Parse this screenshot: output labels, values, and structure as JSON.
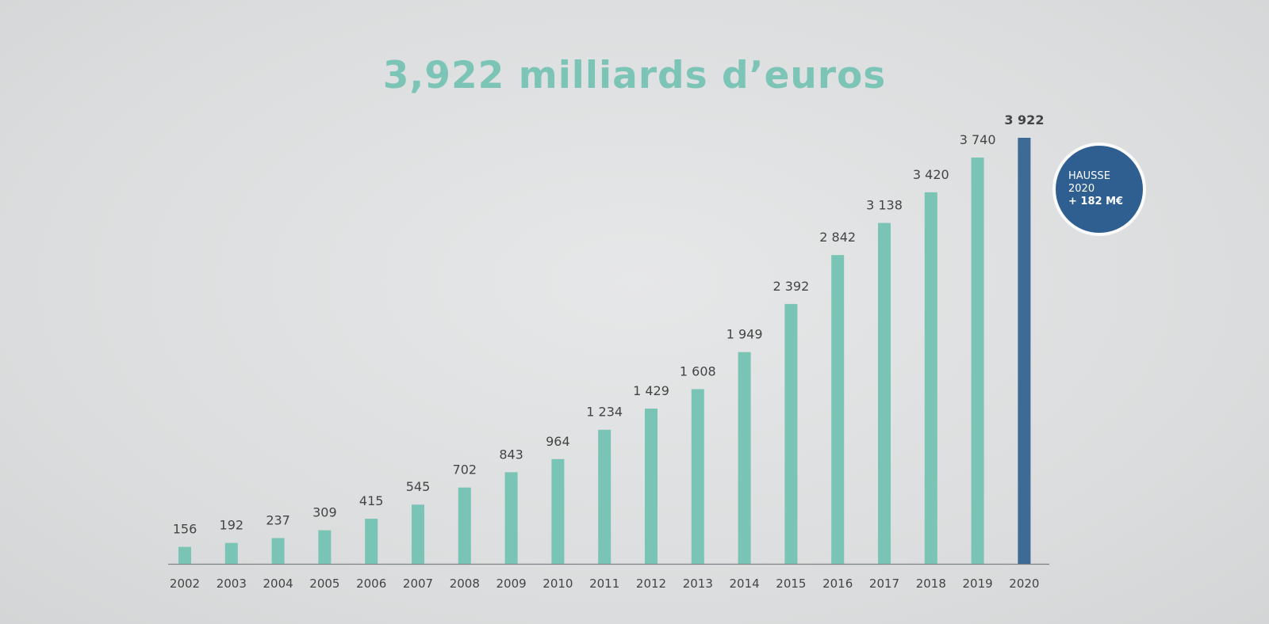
{
  "title": "3,922 milliards d’euros",
  "badge": {
    "line1": "HAUSSE",
    "line2": "2020",
    "line3": "+ 182 M€"
  },
  "colors": {
    "bar": "#79c4b5",
    "highlight_bar": "#3d6b95",
    "title": "#7cc5b6",
    "label": "#444444",
    "axis": "#7d8285",
    "badge": "#2e5f90"
  },
  "chart_data": {
    "type": "bar",
    "title": "3,922 milliards d’euros",
    "categories": [
      "2002",
      "2003",
      "2004",
      "2005",
      "2006",
      "2007",
      "2008",
      "2009",
      "2010",
      "2011",
      "2012",
      "2013",
      "2014",
      "2015",
      "2016",
      "2017",
      "2018",
      "2019",
      "2020"
    ],
    "values": [
      156,
      192,
      237,
      309,
      415,
      545,
      702,
      843,
      964,
      1234,
      1429,
      1608,
      1949,
      2392,
      2842,
      3138,
      3420,
      3740,
      3922
    ],
    "value_labels": [
      "156",
      "192",
      "237",
      "309",
      "415",
      "545",
      "702",
      "843",
      "964",
      "1 234",
      "1 429",
      "1 608",
      "1 949",
      "2 392",
      "2 842",
      "3 138",
      "3 420",
      "3 740",
      "3 922"
    ],
    "highlight": "2020",
    "ylim": [
      0,
      3922
    ],
    "grid": false,
    "legend": "none",
    "xlabel": "",
    "ylabel": ""
  }
}
